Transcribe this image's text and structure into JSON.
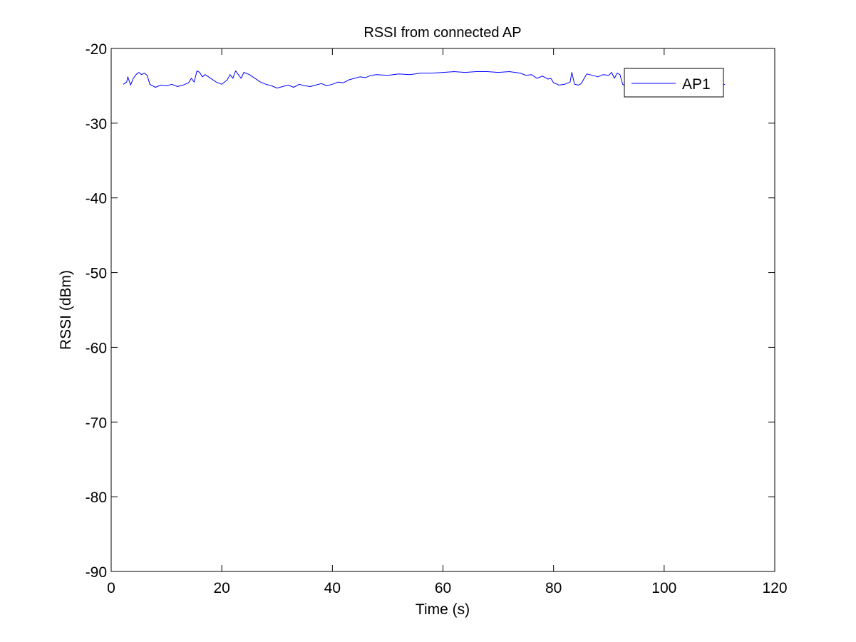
{
  "chart_data": {
    "type": "line",
    "title": "RSSI from connected AP",
    "xlabel": "Time (s)",
    "ylabel": "RSSI (dBm)",
    "xlim": [
      0,
      120
    ],
    "ylim": [
      -90,
      -20
    ],
    "xticks": [
      0,
      20,
      40,
      60,
      80,
      100,
      120
    ],
    "yticks": [
      -90,
      -80,
      -70,
      -60,
      -50,
      -40,
      -30,
      -20
    ],
    "grid": false,
    "legend_position": "top-right",
    "line_color": "#0000ff",
    "series": [
      {
        "name": "AP1",
        "x": [
          2.2,
          2.8,
          3.0,
          3.5,
          4.0,
          4.5,
          5.0,
          5.5,
          6.0,
          6.5,
          7.0,
          7.5,
          8.0,
          9.0,
          10.0,
          11.0,
          12.0,
          13.0,
          14.0,
          14.5,
          15.0,
          15.5,
          16.0,
          16.5,
          17.0,
          18.0,
          19.0,
          20.0,
          21.0,
          21.5,
          22.0,
          22.5,
          23.0,
          23.5,
          24.0,
          25.0,
          26.0,
          27.0,
          28.0,
          29.0,
          30.0,
          31.0,
          32.0,
          33.0,
          34.0,
          35.0,
          36.0,
          37.0,
          38.0,
          39.0,
          40.0,
          41.0,
          42.0,
          43.0,
          44.0,
          45.0,
          46.0,
          47.0,
          48.0,
          50.0,
          52.0,
          54.0,
          56.0,
          58.0,
          60.0,
          62.0,
          64.0,
          66.0,
          68.0,
          70.0,
          72.0,
          74.0,
          75.0,
          76.0,
          77.0,
          78.0,
          79.0,
          79.5,
          80.0,
          81.0,
          82.0,
          83.0,
          83.3,
          83.8,
          84.5,
          85.0,
          86.0,
          87.0,
          88.0,
          89.0,
          90.0,
          90.5,
          91.0,
          91.5,
          92.0,
          92.5,
          93.0,
          94.0,
          95.0,
          96.0,
          97.0,
          98.0,
          99.0,
          100.0,
          101.0,
          102.0,
          103.0,
          104.0,
          105.0,
          106.0,
          107.0,
          108.0,
          109.0,
          110.0,
          111.0
        ],
        "y": [
          -24.8,
          -24.5,
          -23.8,
          -24.9,
          -24.0,
          -23.5,
          -23.2,
          -23.5,
          -23.3,
          -23.6,
          -24.8,
          -25.0,
          -25.2,
          -24.9,
          -25.0,
          -24.8,
          -25.1,
          -24.9,
          -24.6,
          -24.0,
          -24.5,
          -23.0,
          -23.2,
          -23.8,
          -23.5,
          -24.0,
          -24.5,
          -24.8,
          -24.2,
          -23.5,
          -24.0,
          -23.0,
          -23.5,
          -24.0,
          -23.2,
          -23.5,
          -24.0,
          -24.5,
          -24.8,
          -25.0,
          -25.3,
          -25.1,
          -24.9,
          -25.2,
          -24.8,
          -25.0,
          -25.1,
          -24.9,
          -24.7,
          -25.0,
          -24.8,
          -24.5,
          -24.6,
          -24.2,
          -24.0,
          -23.8,
          -23.9,
          -23.6,
          -23.5,
          -23.6,
          -23.4,
          -23.5,
          -23.3,
          -23.3,
          -23.2,
          -23.1,
          -23.2,
          -23.1,
          -23.1,
          -23.2,
          -23.1,
          -23.3,
          -23.6,
          -23.5,
          -24.0,
          -23.7,
          -24.1,
          -24.0,
          -24.6,
          -24.9,
          -24.8,
          -24.5,
          -23.2,
          -24.8,
          -24.9,
          -24.7,
          -23.4,
          -23.6,
          -23.8,
          -23.5,
          -23.6,
          -23.2,
          -24.0,
          -23.3,
          -23.5,
          -24.8,
          -25.0,
          -24.7,
          -25.1,
          -24.5,
          -25.0,
          -24.8,
          -25.0,
          -24.6,
          -24.9,
          -25.0,
          -24.7,
          -24.9,
          -24.8,
          -25.0,
          -24.7,
          -24.9,
          -24.8,
          -25.0,
          -24.8
        ]
      }
    ]
  }
}
